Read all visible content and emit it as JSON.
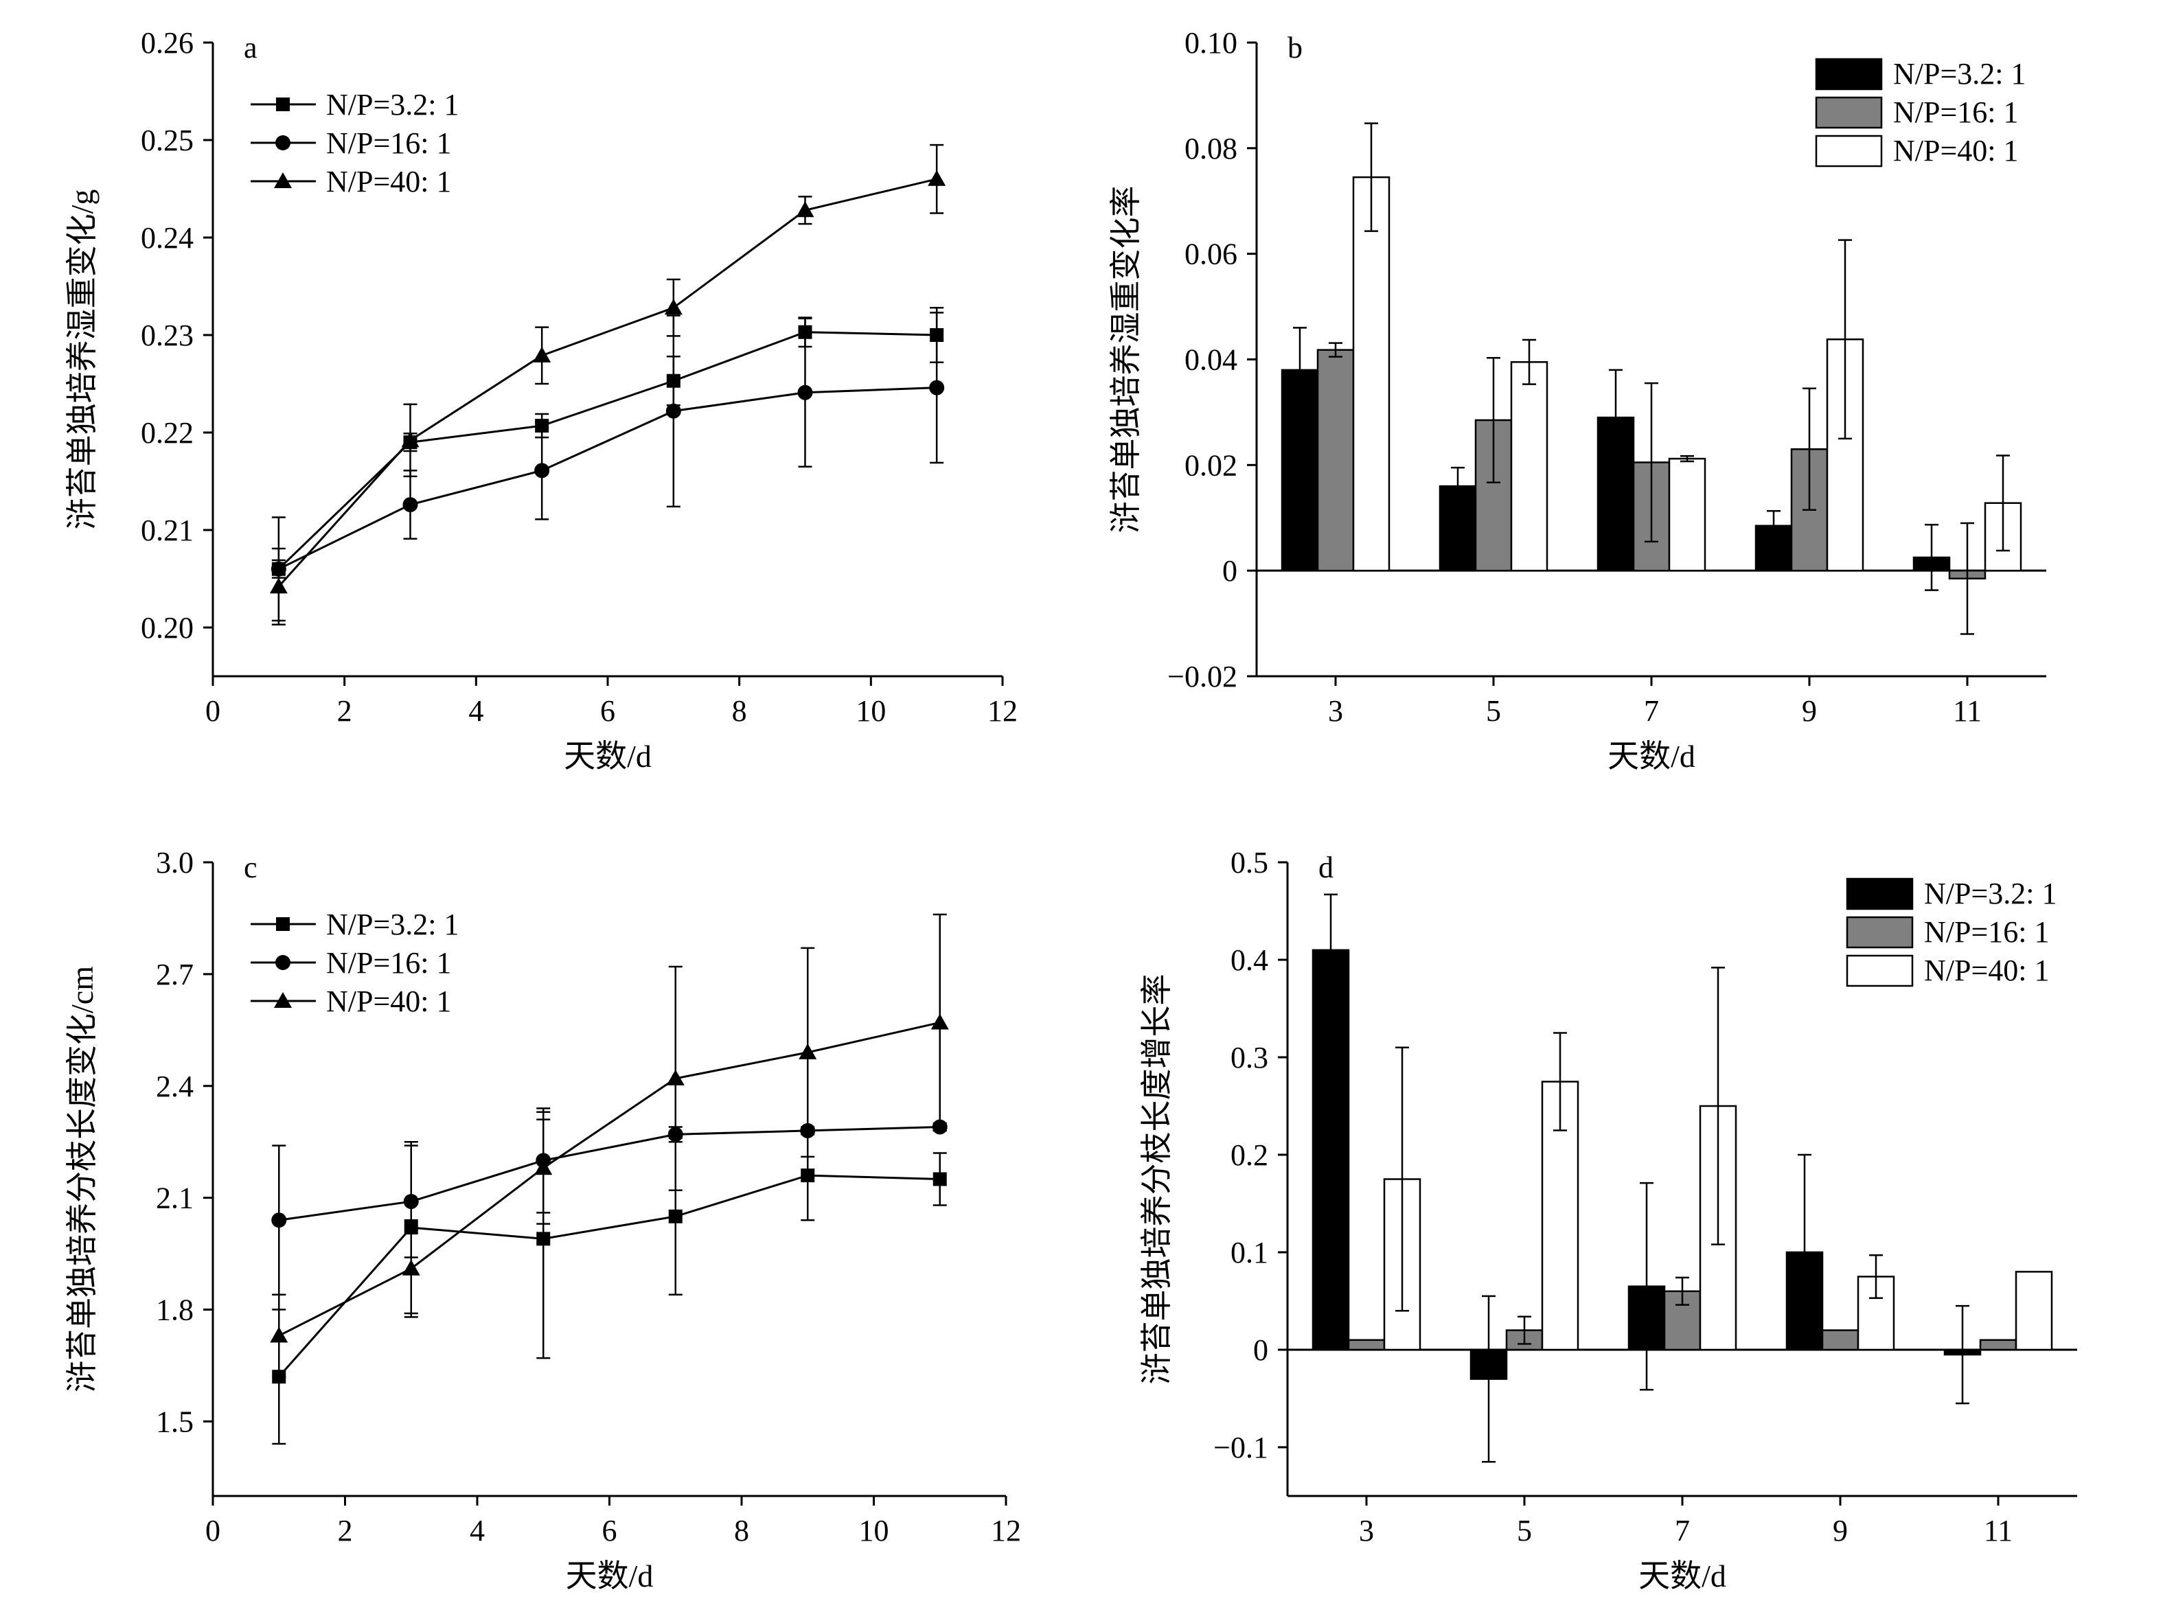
{
  "chart_data": [
    {
      "panel": "a",
      "type": "line",
      "xlabel": "天数/d",
      "ylabel": "浒苔单独培养湿重变化/g",
      "xlim": [
        0,
        12
      ],
      "ylim": [
        0.195,
        0.26
      ],
      "xticks": [
        0,
        2,
        4,
        6,
        8,
        10,
        12
      ],
      "yticks": [
        "0.20",
        "0.21",
        "0.22",
        "0.23",
        "0.24",
        "0.25",
        "0.26"
      ],
      "x": [
        1,
        3,
        5,
        7,
        9,
        11
      ],
      "legend_position": "top-left",
      "series": [
        {
          "name": "N/P=3.2: 1",
          "marker": "square",
          "values": [
            0.206,
            0.219,
            0.2207,
            0.2253,
            0.2303,
            0.23
          ],
          "errors": [
            0.0009,
            0.0009,
            0.0012,
            0.0025,
            0.0015,
            0.0028
          ]
        },
        {
          "name": "N/P=16: 1",
          "marker": "circle",
          "values": [
            0.206,
            0.2126,
            0.2161,
            0.2222,
            0.2241,
            0.2246
          ],
          "errors": [
            0.0053,
            0.0035,
            0.005,
            0.0098,
            0.0076,
            0.0077
          ]
        },
        {
          "name": "N/P=40: 1",
          "marker": "triangle",
          "values": [
            0.2042,
            0.2192,
            0.2279,
            0.2328,
            0.2428,
            0.246
          ],
          "errors": [
            0.0039,
            0.0037,
            0.0029,
            0.0029,
            0.0014,
            0.0035
          ]
        }
      ]
    },
    {
      "panel": "b",
      "type": "bar",
      "xlabel": "天数/d",
      "ylabel": "浒苔单独培养湿重变化率",
      "ylim": [
        -0.02,
        0.1
      ],
      "yticks": [
        "−0.02",
        "0",
        "0.02",
        "0.04",
        "0.06",
        "0.08",
        "0.10"
      ],
      "categories": [
        "3",
        "5",
        "7",
        "9",
        "11"
      ],
      "legend_position": "top-right",
      "series": [
        {
          "name": "N/P=3.2: 1",
          "color": "#000000",
          "values": [
            0.038,
            0.016,
            0.029,
            0.0085,
            0.0025
          ],
          "errors": [
            0.008,
            0.0035,
            0.009,
            0.0028,
            0.0062
          ]
        },
        {
          "name": "N/P=16: 1",
          "color": "#808080",
          "values": [
            0.0418,
            0.0285,
            0.0205,
            0.023,
            -0.0015
          ],
          "errors": [
            0.0013,
            0.0118,
            0.015,
            0.0115,
            0.0105
          ]
        },
        {
          "name": "N/P=40: 1",
          "color": "#ffffff",
          "values": [
            0.0745,
            0.0395,
            0.0212,
            0.0438,
            0.0128
          ],
          "errors": [
            0.0102,
            0.0042,
            0.0005,
            0.0188,
            0.009
          ]
        }
      ]
    },
    {
      "panel": "c",
      "type": "line",
      "xlabel": "天数/d",
      "ylabel": "浒苔单独培养分枝长度变化/cm",
      "xlim": [
        0,
        12
      ],
      "ylim": [
        1.3,
        3.0
      ],
      "xticks": [
        0,
        2,
        4,
        6,
        8,
        10,
        12
      ],
      "yticks": [
        "1.5",
        "1.8",
        "2.1",
        "2.4",
        "2.7",
        "3.0"
      ],
      "x": [
        1,
        3,
        5,
        7,
        9,
        11
      ],
      "legend_position": "top-left",
      "series": [
        {
          "name": "N/P=3.2: 1",
          "marker": "square",
          "values": [
            1.62,
            2.02,
            1.99,
            2.05,
            2.16,
            2.15
          ],
          "errors": [
            0.18,
            0.23,
            0.32,
            0.21,
            0.12,
            0.07
          ]
        },
        {
          "name": "N/P=16: 1",
          "marker": "circle",
          "values": [
            2.04,
            2.09,
            2.2,
            2.27,
            2.28,
            2.29
          ],
          "errors": [
            0.2,
            0.15,
            0.14,
            0.02,
            0.01,
            0.01
          ]
        },
        {
          "name": "N/P=40: 1",
          "marker": "triangle",
          "values": [
            1.73,
            1.91,
            2.18,
            2.42,
            2.49,
            2.57
          ],
          "errors": [
            0.11,
            0.13,
            0.15,
            0.3,
            0.28,
            0.29
          ]
        }
      ]
    },
    {
      "panel": "d",
      "type": "bar",
      "xlabel": "天数/d",
      "ylabel": "浒苔单独培养分枝长度增长率",
      "ylim": [
        -0.15,
        0.5
      ],
      "yticks": [
        "−0.1",
        "0",
        "0.1",
        "0.2",
        "0.3",
        "0.4",
        "0.5"
      ],
      "categories": [
        "3",
        "5",
        "7",
        "9",
        "11"
      ],
      "legend_position": "top-right",
      "series": [
        {
          "name": "N/P=3.2: 1",
          "color": "#000000",
          "values": [
            0.41,
            -0.03,
            0.065,
            0.1,
            -0.005
          ],
          "errors": [
            0.057,
            0.085,
            0.106,
            0.1,
            0.05
          ]
        },
        {
          "name": "N/P=16: 1",
          "color": "#808080",
          "values": [
            0.01,
            0.02,
            0.06,
            0.02,
            0.01
          ],
          "errors": [
            0,
            0.014,
            0.014,
            0,
            0
          ]
        },
        {
          "name": "N/P=40: 1",
          "color": "#ffffff",
          "values": [
            0.175,
            0.275,
            0.25,
            0.075,
            0.08
          ],
          "errors": [
            0.135,
            0.05,
            0.142,
            0.022,
            0
          ]
        }
      ]
    }
  ]
}
